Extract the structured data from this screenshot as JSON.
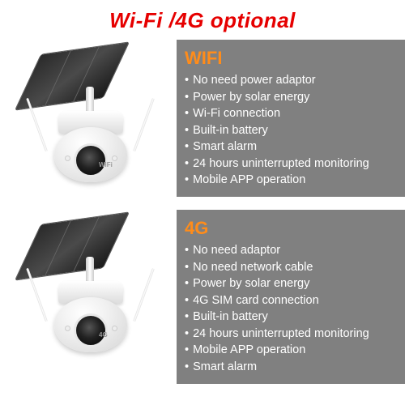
{
  "headline": {
    "text": "Wi-Fi /4G optional",
    "color": "#e60000"
  },
  "sections": [
    {
      "key": "wifi",
      "title": "WIFI",
      "title_color": "#ff8c1a",
      "panel_bg": "#808080",
      "badge_text": "WiFi",
      "features": [
        "No need power adaptor",
        "Power by solar energy",
        "Wi-Fi connection",
        "Built-in battery",
        "Smart alarm",
        "24 hours uninterrupted monitoring",
        "Mobile APP operation"
      ]
    },
    {
      "key": "4g",
      "title": "4G",
      "title_color": "#ff8c1a",
      "panel_bg": "#808080",
      "badge_text": "4G",
      "features": [
        "No need adaptor",
        "No need network cable",
        "Power by solar energy",
        "4G SIM card connection",
        "Built-in battery",
        "24 hours uninterrupted monitoring",
        "Mobile APP operation",
        "Smart alarm"
      ]
    }
  ],
  "style": {
    "bullet_char": "•",
    "feature_color": "#ffffff",
    "feature_fontsize": 14.5
  }
}
